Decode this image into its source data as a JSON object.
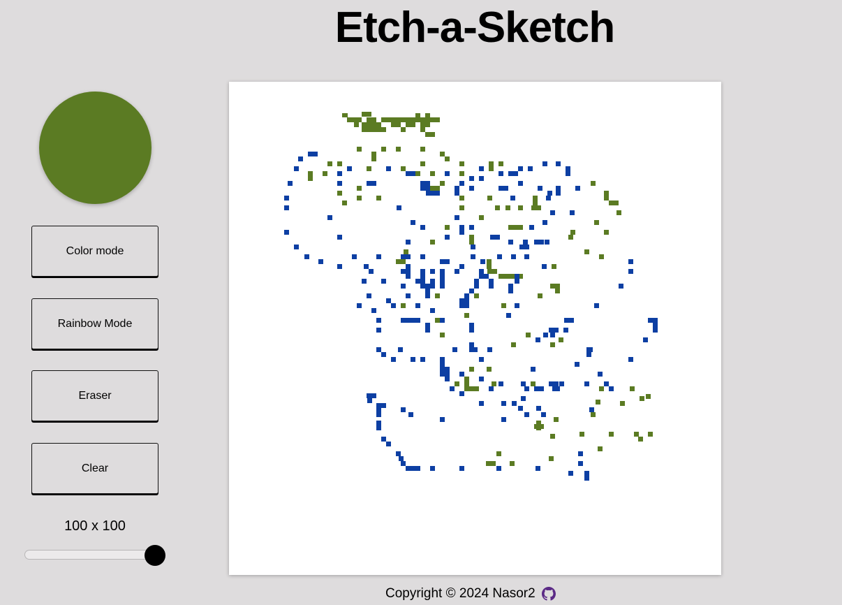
{
  "page": {
    "title": "Etch-a-Sketch"
  },
  "sidebar": {
    "current_color": "#5b7b23",
    "buttons": {
      "color_mode": "Color mode",
      "rainbow_mode": "Rainbow Mode",
      "eraser": "Eraser",
      "clear": "Clear"
    },
    "grid_size_label": "100 x 100",
    "grid_size_value": 100,
    "grid_size_slider_fraction": 1.0
  },
  "board": {
    "background_color": "#ffffff",
    "green_color": "#5b7b23",
    "blue_color": "#0d3fa3"
  },
  "footer": {
    "copyright": "Copyright © 2024 Nasor2",
    "icon": "github-icon",
    "icon_color": "#5b2a86"
  }
}
